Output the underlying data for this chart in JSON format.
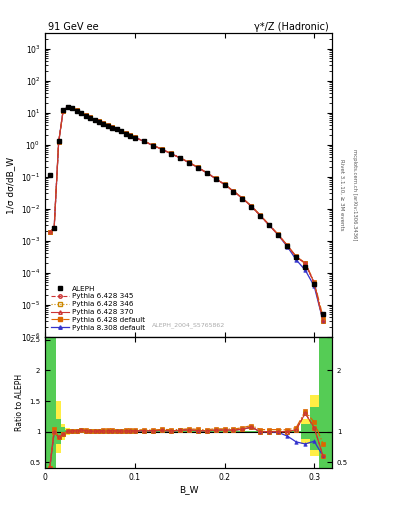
{
  "title_left": "91 GeV ee",
  "title_right": "γ*/Z (Hadronic)",
  "ylabel_main": "1/σ dσ/dB_W",
  "ylabel_ratio": "Ratio to ALEPH",
  "xlabel": "B_W",
  "right_label_top": "Rivet 3.1.10, ≥ 3M events",
  "right_label_bot": "mcplots.cern.ch [arXiv:1306.3436]",
  "watermark": "ALEPH_2004_S5765862",
  "ylim_main": [
    1e-06,
    3000.0
  ],
  "ylim_ratio": [
    0.4,
    2.55
  ],
  "xlim": [
    0.0,
    0.32
  ],
  "data_x": [
    0.005,
    0.01,
    0.015,
    0.02,
    0.025,
    0.03,
    0.035,
    0.04,
    0.045,
    0.05,
    0.055,
    0.06,
    0.065,
    0.07,
    0.075,
    0.08,
    0.085,
    0.09,
    0.095,
    0.1,
    0.11,
    0.12,
    0.13,
    0.14,
    0.15,
    0.16,
    0.17,
    0.18,
    0.19,
    0.2,
    0.21,
    0.22,
    0.23,
    0.24,
    0.25,
    0.26,
    0.27,
    0.28,
    0.29,
    0.3,
    0.31
  ],
  "aleph_y": [
    0.11,
    0.0025,
    1.3,
    12.0,
    15.0,
    13.5,
    11.5,
    9.5,
    8.0,
    7.0,
    6.0,
    5.2,
    4.5,
    3.9,
    3.4,
    3.0,
    2.6,
    2.2,
    1.9,
    1.65,
    1.25,
    0.93,
    0.7,
    0.52,
    0.38,
    0.27,
    0.19,
    0.13,
    0.085,
    0.055,
    0.034,
    0.02,
    0.011,
    0.006,
    0.003,
    0.0015,
    0.0007,
    0.0003,
    0.00015,
    4.5e-05,
    5e-06
  ],
  "py345_y": [
    0.0018,
    0.0025,
    1.18,
    11.5,
    15.1,
    13.7,
    11.7,
    9.75,
    8.15,
    7.05,
    6.05,
    5.28,
    4.57,
    3.97,
    3.46,
    3.03,
    2.63,
    2.23,
    1.93,
    1.67,
    1.27,
    0.945,
    0.715,
    0.527,
    0.388,
    0.278,
    0.193,
    0.132,
    0.087,
    0.0565,
    0.0348,
    0.0208,
    0.0118,
    0.006,
    0.003,
    0.0015,
    0.0007,
    0.00031,
    0.000195,
    4.8e-05,
    3e-06
  ],
  "py346_y": [
    0.0018,
    0.0025,
    1.18,
    11.5,
    15.1,
    13.7,
    11.7,
    9.75,
    8.15,
    7.05,
    6.05,
    5.28,
    4.57,
    3.97,
    3.46,
    3.03,
    2.63,
    2.23,
    1.93,
    1.67,
    1.27,
    0.945,
    0.715,
    0.527,
    0.388,
    0.278,
    0.193,
    0.132,
    0.087,
    0.0565,
    0.0348,
    0.0208,
    0.0118,
    0.006,
    0.003,
    0.0015,
    0.0007,
    0.00031,
    0.000195,
    4.8e-05,
    3e-06
  ],
  "py370_y": [
    0.0018,
    0.0025,
    1.18,
    11.5,
    15.1,
    13.7,
    11.7,
    9.75,
    8.15,
    7.05,
    6.05,
    5.28,
    4.57,
    3.97,
    3.46,
    3.03,
    2.63,
    2.23,
    1.93,
    1.67,
    1.27,
    0.945,
    0.715,
    0.527,
    0.388,
    0.278,
    0.193,
    0.132,
    0.087,
    0.0565,
    0.0348,
    0.0208,
    0.0118,
    0.006,
    0.003,
    0.0015,
    0.0007,
    0.00031,
    0.000195,
    4.8e-05,
    3e-06
  ],
  "pydef_y": [
    0.0018,
    0.0025,
    1.18,
    11.55,
    15.12,
    13.72,
    11.72,
    9.77,
    8.17,
    7.07,
    6.07,
    5.3,
    4.59,
    3.99,
    3.48,
    3.05,
    2.65,
    2.25,
    1.95,
    1.69,
    1.29,
    0.955,
    0.725,
    0.537,
    0.393,
    0.283,
    0.197,
    0.134,
    0.089,
    0.0575,
    0.0354,
    0.0213,
    0.0121,
    0.0062,
    0.0031,
    0.00155,
    0.00072,
    0.00032,
    0.0002,
    5.2e-05,
    4e-06
  ],
  "py8def_y": [
    0.0018,
    0.0025,
    1.18,
    11.5,
    15.1,
    13.7,
    11.7,
    9.75,
    8.15,
    7.05,
    6.05,
    5.28,
    4.57,
    3.97,
    3.46,
    3.03,
    2.63,
    2.23,
    1.93,
    1.67,
    1.27,
    0.945,
    0.715,
    0.527,
    0.388,
    0.278,
    0.193,
    0.132,
    0.087,
    0.0565,
    0.0348,
    0.0208,
    0.0118,
    0.006,
    0.003,
    0.00148,
    0.00065,
    0.00025,
    0.00012,
    3.8e-05,
    3e-06
  ],
  "color_py345": "#cc3333",
  "color_py346": "#cc8800",
  "color_py370": "#cc3333",
  "color_pydef": "#dd6600",
  "color_py8def": "#3333cc",
  "color_aleph": "#000000",
  "color_band_yellow": "#ffee44",
  "color_band_green": "#55cc55",
  "ratio_py345": [
    0.017,
    1.0,
    0.91,
    0.958,
    1.007,
    1.015,
    1.017,
    1.026,
    1.019,
    1.007,
    1.008,
    1.015,
    1.016,
    1.018,
    1.018,
    1.01,
    1.012,
    1.014,
    1.016,
    1.012,
    1.016,
    1.016,
    1.021,
    1.013,
    1.021,
    1.03,
    1.016,
    1.015,
    1.024,
    1.027,
    1.024,
    1.04,
    1.073,
    1.0,
    1.0,
    1.0,
    1.0,
    1.033,
    1.3,
    1.067,
    0.6
  ],
  "ratio_py346": [
    0.017,
    1.0,
    0.91,
    0.958,
    1.007,
    1.015,
    1.017,
    1.026,
    1.019,
    1.007,
    1.008,
    1.015,
    1.016,
    1.018,
    1.018,
    1.01,
    1.012,
    1.014,
    1.016,
    1.012,
    1.016,
    1.016,
    1.021,
    1.013,
    1.021,
    1.03,
    1.016,
    1.015,
    1.024,
    1.027,
    1.024,
    1.04,
    1.073,
    1.0,
    1.0,
    1.0,
    1.0,
    1.033,
    1.3,
    1.067,
    0.6
  ],
  "ratio_py370": [
    0.017,
    1.0,
    0.91,
    0.958,
    1.007,
    1.015,
    1.017,
    1.026,
    1.019,
    1.007,
    1.008,
    1.015,
    1.016,
    1.018,
    1.018,
    1.01,
    1.012,
    1.014,
    1.016,
    1.012,
    1.016,
    1.016,
    1.021,
    1.013,
    1.021,
    1.03,
    1.016,
    1.015,
    1.024,
    1.027,
    1.024,
    1.04,
    1.073,
    1.0,
    1.0,
    1.0,
    1.0,
    1.033,
    1.3,
    1.067,
    0.6
  ],
  "ratio_pydef": [
    0.017,
    1.05,
    0.91,
    0.963,
    1.008,
    1.016,
    1.019,
    1.028,
    1.021,
    1.01,
    1.012,
    1.019,
    1.02,
    1.023,
    1.024,
    1.017,
    1.019,
    1.023,
    1.026,
    1.024,
    1.032,
    1.027,
    1.036,
    1.033,
    1.034,
    1.048,
    1.037,
    1.031,
    1.047,
    1.045,
    1.041,
    1.065,
    1.1,
    1.033,
    1.033,
    1.033,
    1.029,
    1.067,
    1.333,
    1.156,
    0.8
  ],
  "ratio_py8def": [
    0.017,
    1.0,
    0.91,
    0.958,
    1.007,
    1.015,
    1.017,
    1.026,
    1.019,
    1.007,
    1.008,
    1.015,
    1.016,
    1.018,
    1.018,
    1.01,
    1.012,
    1.014,
    1.016,
    1.012,
    1.016,
    1.016,
    1.021,
    1.013,
    1.021,
    1.03,
    1.016,
    1.015,
    1.024,
    1.027,
    1.024,
    1.04,
    1.073,
    1.0,
    1.0,
    0.987,
    0.929,
    0.833,
    0.8,
    0.844,
    0.6
  ],
  "band_x_edges": [
    0.0,
    0.0075,
    0.0125,
    0.0175,
    0.0225,
    0.0275,
    0.0325,
    0.0375,
    0.0425,
    0.0475,
    0.0525,
    0.0575,
    0.0625,
    0.0675,
    0.0725,
    0.0775,
    0.0825,
    0.0875,
    0.0925,
    0.0975,
    0.105,
    0.115,
    0.125,
    0.135,
    0.145,
    0.155,
    0.165,
    0.175,
    0.185,
    0.195,
    0.205,
    0.215,
    0.225,
    0.235,
    0.245,
    0.255,
    0.265,
    0.275,
    0.285,
    0.295,
    0.305,
    0.32
  ],
  "band_yellow_lo": [
    0.4,
    0.4,
    0.65,
    0.87,
    0.94,
    0.97,
    0.975,
    0.975,
    0.98,
    0.985,
    0.985,
    0.985,
    0.985,
    0.985,
    0.985,
    0.985,
    0.985,
    0.985,
    0.985,
    0.985,
    0.985,
    0.985,
    0.985,
    0.985,
    0.985,
    0.985,
    0.985,
    0.985,
    0.985,
    0.985,
    0.985,
    0.985,
    0.985,
    0.985,
    0.985,
    0.985,
    0.985,
    0.985,
    0.8,
    0.6,
    0.4
  ],
  "band_yellow_hi": [
    2.55,
    2.55,
    1.5,
    1.13,
    1.06,
    1.03,
    1.025,
    1.025,
    1.02,
    1.015,
    1.015,
    1.015,
    1.015,
    1.015,
    1.015,
    1.015,
    1.015,
    1.015,
    1.015,
    1.015,
    1.015,
    1.015,
    1.015,
    1.015,
    1.015,
    1.015,
    1.015,
    1.015,
    1.015,
    1.015,
    1.015,
    1.015,
    1.015,
    1.015,
    1.015,
    1.015,
    1.015,
    1.015,
    1.2,
    1.6,
    2.55
  ],
  "band_green_lo": [
    0.4,
    0.4,
    0.8,
    0.92,
    0.966,
    0.981,
    0.983,
    0.983,
    0.987,
    0.99,
    0.99,
    0.99,
    0.99,
    0.99,
    0.99,
    0.99,
    0.99,
    0.99,
    0.99,
    0.99,
    0.99,
    0.99,
    0.99,
    0.99,
    0.99,
    0.99,
    0.99,
    0.99,
    0.99,
    0.99,
    0.99,
    0.99,
    0.99,
    0.99,
    0.99,
    0.99,
    0.99,
    0.99,
    0.88,
    0.7,
    0.4
  ],
  "band_green_hi": [
    2.55,
    2.55,
    1.2,
    1.08,
    1.034,
    1.019,
    1.017,
    1.017,
    1.013,
    1.01,
    1.01,
    1.01,
    1.01,
    1.01,
    1.01,
    1.01,
    1.01,
    1.01,
    1.01,
    1.01,
    1.01,
    1.01,
    1.01,
    1.01,
    1.01,
    1.01,
    1.01,
    1.01,
    1.01,
    1.01,
    1.01,
    1.01,
    1.01,
    1.01,
    1.01,
    1.01,
    1.01,
    1.01,
    1.12,
    1.4,
    2.55
  ]
}
